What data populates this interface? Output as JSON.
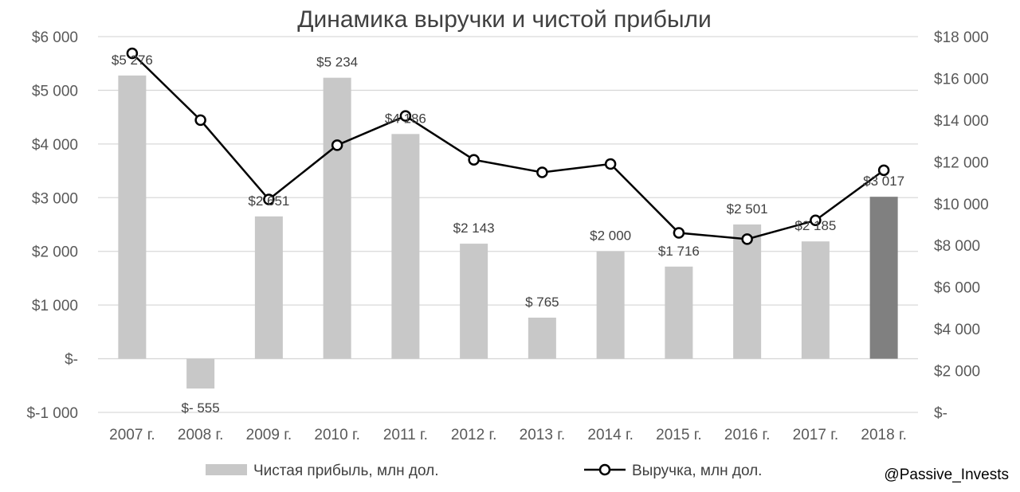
{
  "chart_data": {
    "type": "bar",
    "title": "Динамика выручки и чистой прибыли",
    "categories": [
      "2007 г.",
      "2008 г.",
      "2009 г.",
      "2010 г.",
      "2011 г.",
      "2012 г.",
      "2013 г.",
      "2014 г.",
      "2015 г.",
      "2016 г.",
      "2017 г.",
      "2018 г."
    ],
    "series": [
      {
        "name": "Чистая прибыль, млн дол.",
        "type": "bar",
        "axis": "left",
        "values": [
          5276,
          -555,
          2651,
          5234,
          4186,
          2143,
          765,
          2000,
          1716,
          2501,
          2185,
          3017
        ],
        "data_labels": [
          "$5 276",
          "$- 555",
          "$2 651",
          "$5 234",
          "$4 186",
          "$2 143",
          "$ 765",
          "$2 000",
          "$1 716",
          "$2 501",
          "$2 185",
          "$3 017"
        ],
        "color": "#c8c8c8",
        "highlight_last_color": "#808080"
      },
      {
        "name": "Выручка, млн дол.",
        "type": "line",
        "axis": "right",
        "values": [
          17200,
          14000,
          10200,
          12800,
          14200,
          12100,
          11500,
          11900,
          8600,
          8300,
          9200,
          11600
        ],
        "color": "#000000"
      }
    ],
    "y_left": {
      "min": -1000,
      "max": 6000,
      "ticks": [
        -1000,
        0,
        1000,
        2000,
        3000,
        4000,
        5000,
        6000
      ],
      "tick_labels": [
        "$-1 000",
        "$-",
        "$1 000",
        "$2 000",
        "$3 000",
        "$4 000",
        "$5 000",
        "$6 000"
      ]
    },
    "y_right": {
      "min": 0,
      "max": 18000,
      "ticks": [
        0,
        2000,
        4000,
        6000,
        8000,
        10000,
        12000,
        14000,
        16000,
        18000
      ],
      "tick_labels": [
        "$-",
        "$2 000",
        "$4 000",
        "$6 000",
        "$8 000",
        "$10 000",
        "$12 000",
        "$14 000",
        "$16 000",
        "$18 000"
      ]
    },
    "grid": true,
    "legend_position": "bottom"
  },
  "watermark": "@Passive_Invests"
}
